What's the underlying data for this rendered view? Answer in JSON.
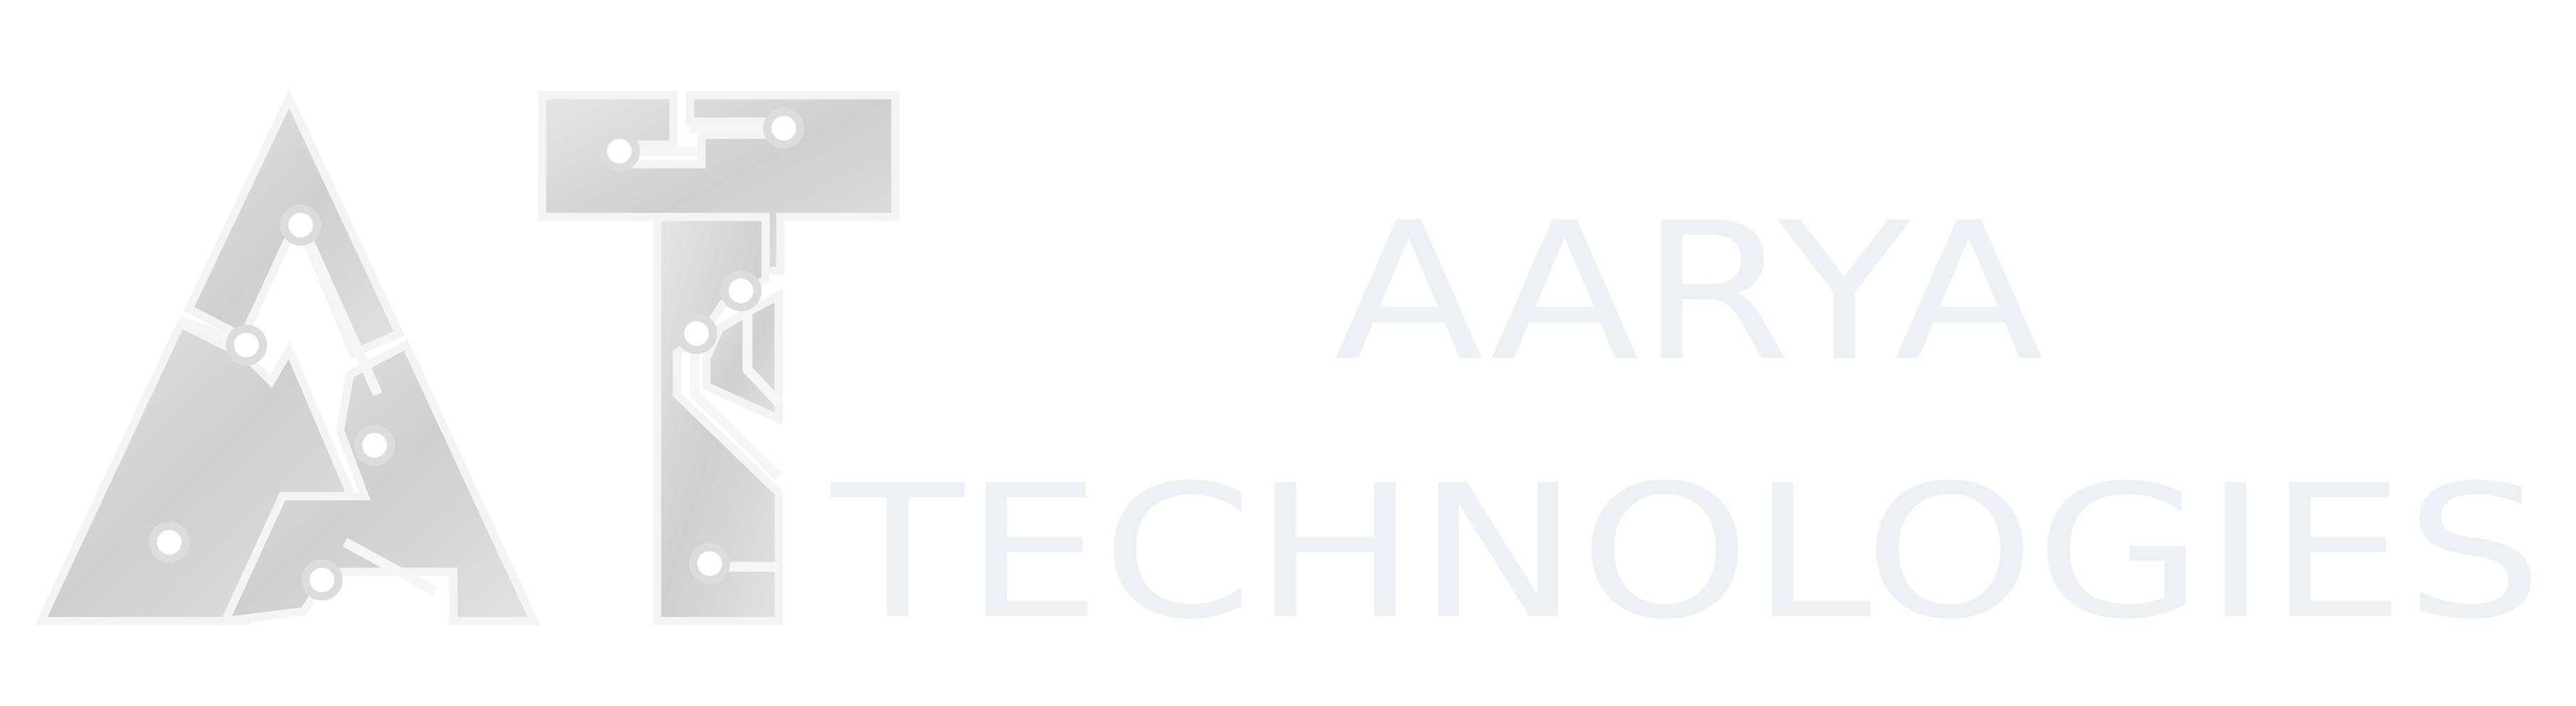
{
  "brand": {
    "name": "AARYA",
    "tagline": "TECHNOLOGIES"
  }
}
